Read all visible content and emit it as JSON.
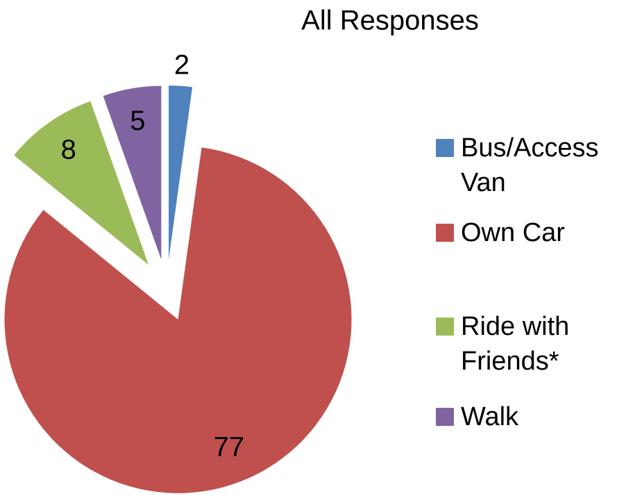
{
  "chart_data": {
    "type": "pie",
    "title": "All Responses",
    "categories": [
      "Bus/Access Van",
      "Own Car",
      "Ride with Friends*",
      "Walk"
    ],
    "values": [
      2,
      77,
      8,
      5
    ],
    "colors": [
      "#4f81bd",
      "#c0504d",
      "#9bbb59",
      "#8064a2"
    ],
    "legend": "right"
  }
}
